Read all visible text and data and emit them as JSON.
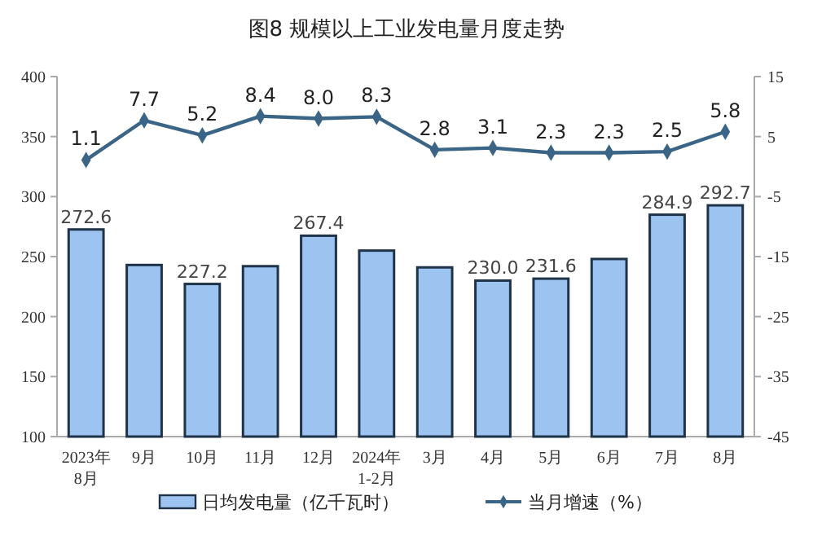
{
  "chart_data": {
    "type": "bar",
    "title": "图8  规模以上工业发电量月度走势",
    "categories": [
      "2023年\n8月",
      "9月",
      "10月",
      "11月",
      "12月",
      "2024年\n1-2月",
      "3月",
      "4月",
      "5月",
      "6月",
      "7月",
      "8月"
    ],
    "series": [
      {
        "name": "日均发电量（亿千瓦时）",
        "color": "#9dc3f0",
        "values": [
          272.6,
          243,
          227.2,
          242,
          267.4,
          255,
          241,
          230.0,
          231.6,
          248,
          284.9,
          292.7
        ],
        "value_labels": [
          "272.6",
          null,
          "227.2",
          null,
          "267.4",
          null,
          null,
          "230.0",
          "231.6",
          null,
          "284.9",
          "292.7"
        ]
      },
      {
        "name": "当月增速（%）",
        "type": "line",
        "axis": "y2",
        "color": "#3a6587",
        "marker": "diamond",
        "values": [
          1.1,
          7.7,
          5.2,
          8.4,
          8.0,
          8.3,
          2.8,
          3.1,
          2.3,
          2.3,
          2.5,
          5.8
        ],
        "value_labels": [
          "1.1",
          "7.7",
          "5.2",
          "8.4",
          "8.0",
          "8.3",
          "2.8",
          "3.1",
          "2.3",
          "2.3",
          "2.5",
          "5.8"
        ]
      }
    ],
    "ylim": [
      100,
      400
    ],
    "yticks": [
      100,
      150,
      200,
      250,
      300,
      350,
      400
    ],
    "y2lim": [
      -45,
      15
    ],
    "y2ticks": [
      -45,
      -35,
      -25,
      -15,
      -5,
      5,
      15
    ],
    "grid": false,
    "legend": "bottom"
  }
}
